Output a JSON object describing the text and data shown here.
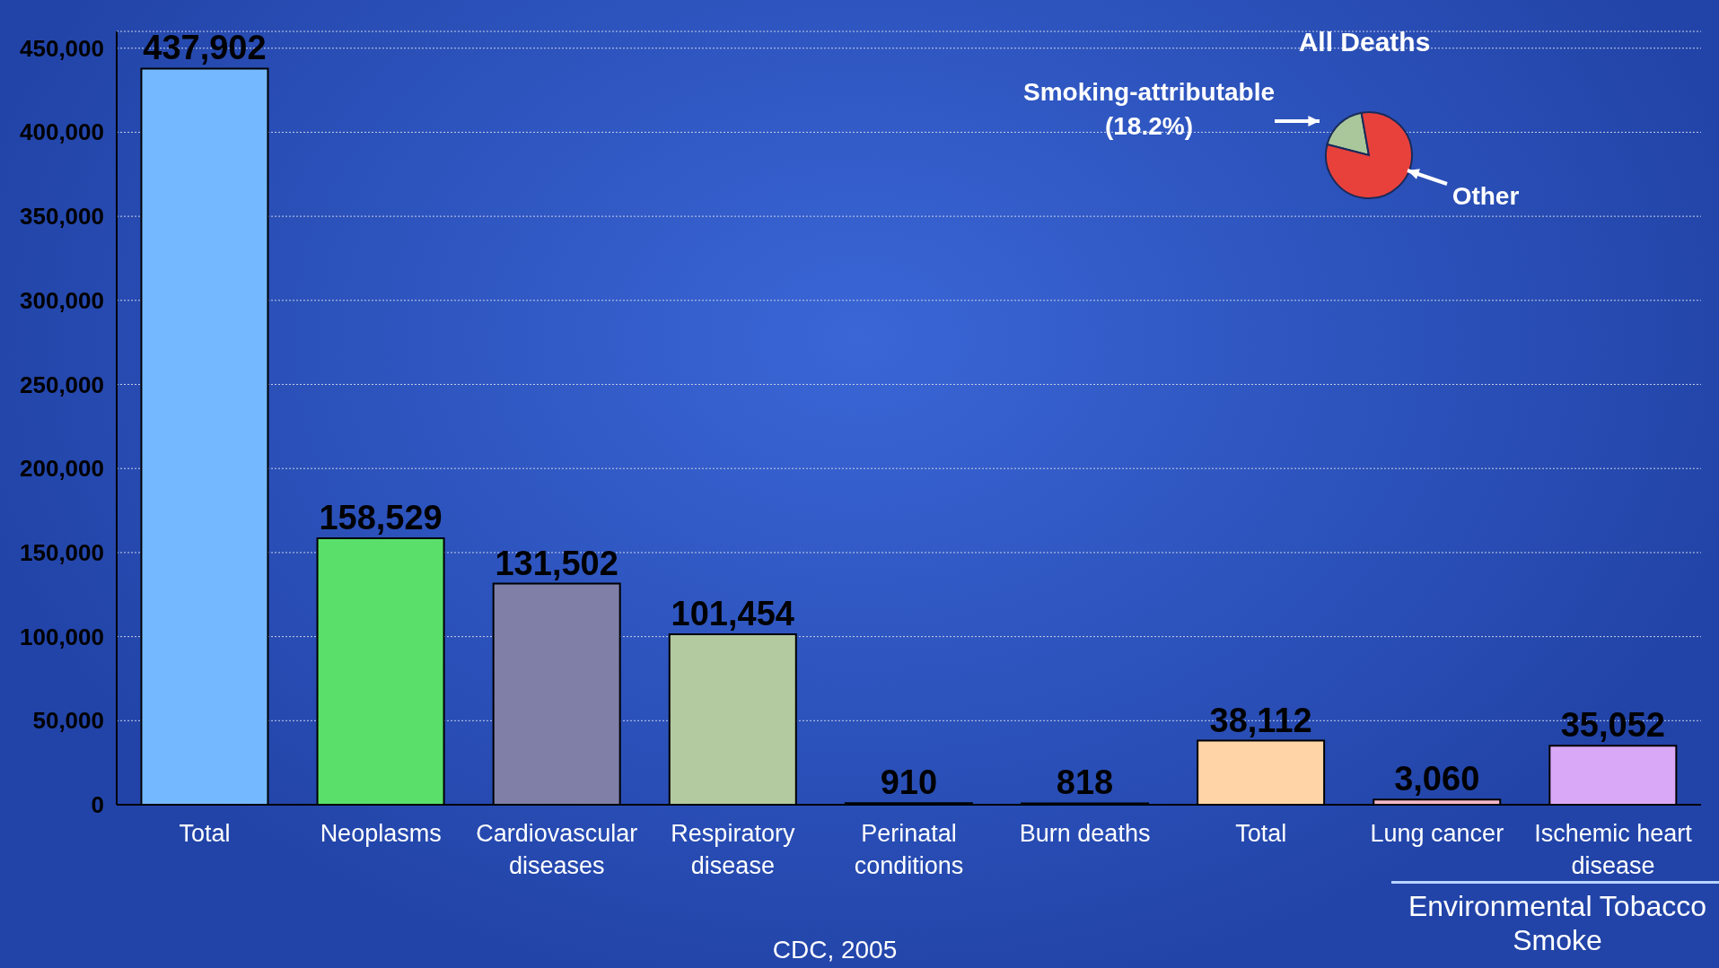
{
  "chart_data": [
    {
      "type": "bar",
      "categories": [
        "Total",
        "Neoplasms",
        "Cardiovascular diseases",
        "Respiratory disease",
        "Perinatal conditions",
        "Burn deaths",
        "Total",
        "Lung cancer",
        "Ischemic heart disease"
      ],
      "values": [
        437902,
        158529,
        131502,
        101454,
        910,
        818,
        38112,
        3060,
        35052
      ],
      "value_labels": [
        "437,902",
        "158,529",
        "131,502",
        "101,454",
        "910",
        "818",
        "38,112",
        "3,060",
        "35,052"
      ],
      "colors": [
        "#74b9ff",
        "#5ae06a",
        "#7f7fa8",
        "#b3c99f",
        "#33e5f0",
        "#22e033",
        "#ffd5a8",
        "#f5b7c7",
        "#d9a9f7"
      ],
      "ylim": [
        0,
        460000
      ],
      "yticks": [
        0,
        {
          "value": 50000,
          "label": "50,000"
        },
        {
          "value": 100000,
          "label": "100,000"
        },
        {
          "value": 150000,
          "label": "150,000"
        },
        {
          "value": 200000,
          "label": "200,000"
        },
        {
          "value": 250000,
          "label": "250,000"
        },
        {
          "value": 300000,
          "label": "300,000"
        },
        {
          "value": 350000,
          "label": "350,000"
        },
        {
          "value": 400000,
          "label": "400,000"
        },
        {
          "value": 450000,
          "label": "450,000"
        }
      ],
      "grid": "y",
      "legend": false,
      "annotations": [
        "CDC, 2005",
        "Environmental Tobacco Smoke"
      ]
    },
    {
      "type": "pie",
      "title": "All Deaths",
      "categories": [
        "Smoking-attributable",
        "Other"
      ],
      "values": [
        18.2,
        81.8
      ],
      "value_labels": [
        "(18.2%)",
        null
      ],
      "colors": [
        "#a9c79a",
        "#e8413c"
      ],
      "legend": false
    }
  ]
}
